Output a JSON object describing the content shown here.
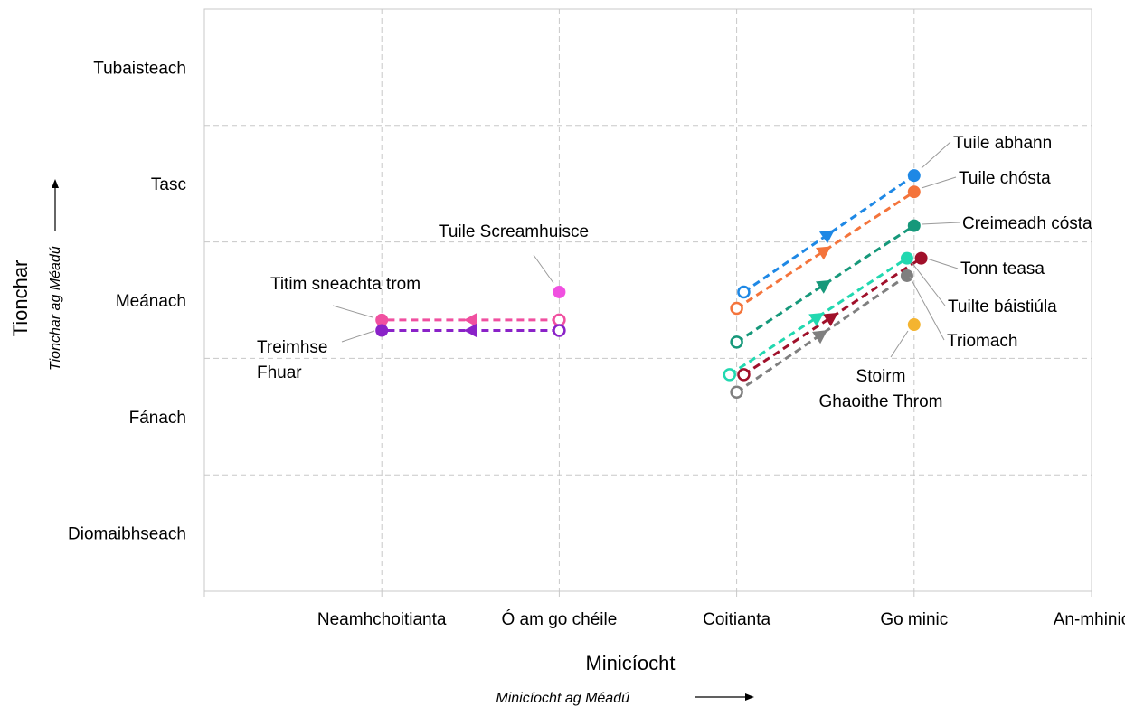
{
  "chart_data": {
    "type": "scatter",
    "xlabel": "Minicíocht",
    "xlabel_sub": "Minicíocht ag Méadú",
    "ylabel": "Tionchar",
    "ylabel_sub": "Tionchar ag Méadú",
    "x_categories": [
      "Neamhchoitianta",
      "Ó am go chéile",
      "Coitianta",
      "Go minic",
      "An-mhinic"
    ],
    "y_categories": [
      "Diomaibhseach",
      "Fánach",
      "Meánach",
      "Tasc",
      "Tubaisteach"
    ],
    "xlim": [
      0,
      5
    ],
    "ylim": [
      0,
      5
    ],
    "grid": true,
    "series": [
      {
        "name": "Tuile abhann",
        "color": "#1e88e5",
        "label": "Tuile abhann",
        "from": [
          3.04,
          2.57
        ],
        "to": [
          4.0,
          3.57
        ]
      },
      {
        "name": "Tuile chósta",
        "color": "#f4743b",
        "label": "Tuile chósta",
        "from": [
          3.0,
          2.43
        ],
        "to": [
          4.0,
          3.43
        ]
      },
      {
        "name": "Creimeadh cósta",
        "color": "#16987a",
        "label": "Creimeadh cósta",
        "from": [
          3.0,
          2.14
        ],
        "to": [
          4.0,
          3.14
        ]
      },
      {
        "name": "Tonn teasa",
        "color": "#a0102a",
        "label": "Tonn teasa",
        "from": [
          3.04,
          1.86
        ],
        "to": [
          4.04,
          2.86
        ]
      },
      {
        "name": "Tuilte báistiúla",
        "color": "#22d8b0",
        "label": "Tuilte báistiúla",
        "from": [
          2.96,
          1.86
        ],
        "to": [
          3.96,
          2.86
        ]
      },
      {
        "name": "Triomach",
        "color": "#7f7f7f",
        "label": "Triomach",
        "from": [
          3.0,
          1.71
        ],
        "to": [
          3.96,
          2.71
        ]
      },
      {
        "name": "Titim sneachta trom",
        "color": "#f050a0",
        "label": "Titim sneachta trom",
        "from": [
          2.0,
          2.33
        ],
        "to": [
          1.0,
          2.33
        ]
      },
      {
        "name": "Treimhse Fhuar",
        "color": "#8a22c8",
        "label_lines": [
          "Treimhse",
          "Fhuar"
        ],
        "from": [
          2.0,
          2.24
        ],
        "to": [
          1.0,
          2.24
        ]
      }
    ],
    "points": [
      {
        "name": "Tuile Screamhuisce",
        "color": "#f050e0",
        "label": "Tuile Screamhuisce",
        "x": 2.0,
        "y": 2.57
      },
      {
        "name": "Stoirm Ghaoithe Throm",
        "color": "#f4b430",
        "label_lines": [
          "Stoirm",
          "Ghaoithe Throm"
        ],
        "x": 4.0,
        "y": 2.29
      }
    ]
  }
}
